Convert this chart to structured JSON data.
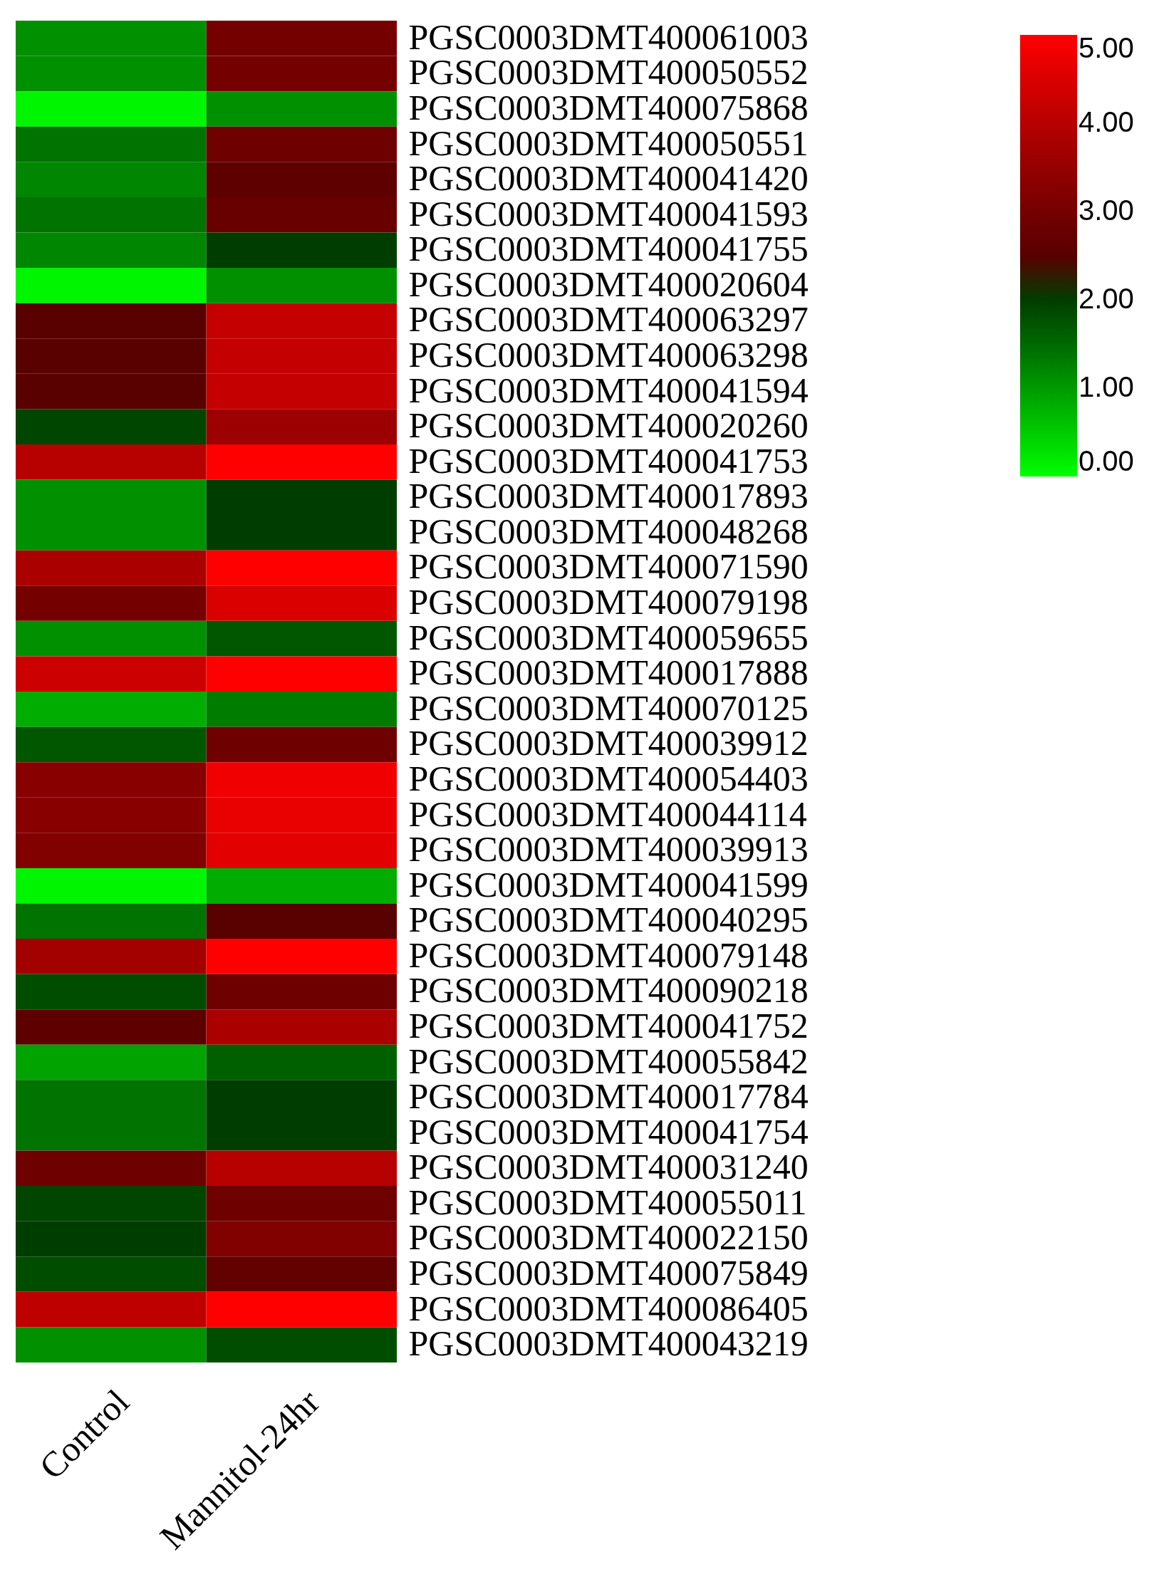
{
  "chart_data": {
    "type": "heatmap",
    "categories": [
      "Control",
      "Mannitol-24hr"
    ],
    "y_categories": [
      "PGSC0003DMT400061003",
      "PGSC0003DMT400050552",
      "PGSC0003DMT400075868",
      "PGSC0003DMT400050551",
      "PGSC0003DMT400041420",
      "PGSC0003DMT400041593",
      "PGSC0003DMT400041755",
      "PGSC0003DMT400020604",
      "PGSC0003DMT400063297",
      "PGSC0003DMT400063298",
      "PGSC0003DMT400041594",
      "PGSC0003DMT400020260",
      "PGSC0003DMT400041753",
      "PGSC0003DMT400017893",
      "PGSC0003DMT400048268",
      "PGSC0003DMT400071590",
      "PGSC0003DMT400079198",
      "PGSC0003DMT400059655",
      "PGSC0003DMT400017888",
      "PGSC0003DMT400070125",
      "PGSC0003DMT400039912",
      "PGSC0003DMT400054403",
      "PGSC0003DMT400044114",
      "PGSC0003DMT400039913",
      "PGSC0003DMT400041599",
      "PGSC0003DMT400040295",
      "PGSC0003DMT400079148",
      "PGSC0003DMT400090218",
      "PGSC0003DMT400041752",
      "PGSC0003DMT400055842",
      "PGSC0003DMT400017784",
      "PGSC0003DMT400041754",
      "PGSC0003DMT400031240",
      "PGSC0003DMT400055011",
      "PGSC0003DMT400022150",
      "PGSC0003DMT400075849",
      "PGSC0003DMT400086405",
      "PGSC0003DMT400043219"
    ],
    "cells": [
      [
        1.1,
        3.0
      ],
      [
        1.1,
        3.0
      ],
      [
        0.1,
        1.1
      ],
      [
        1.4,
        2.9
      ],
      [
        1.2,
        2.6
      ],
      [
        1.4,
        2.8
      ],
      [
        1.2,
        2.0
      ],
      [
        0.1,
        1.1
      ],
      [
        2.5,
        4.2
      ],
      [
        2.5,
        4.2
      ],
      [
        2.5,
        4.2
      ],
      [
        1.9,
        3.6
      ],
      [
        4.0,
        5.0
      ],
      [
        1.1,
        2.0
      ],
      [
        1.1,
        2.0
      ],
      [
        3.8,
        5.0
      ],
      [
        3.0,
        4.5
      ],
      [
        1.1,
        1.7
      ],
      [
        4.3,
        5.0
      ],
      [
        0.8,
        1.3
      ],
      [
        1.7,
        2.9
      ],
      [
        3.3,
        4.8
      ],
      [
        3.3,
        4.7
      ],
      [
        3.2,
        4.6
      ],
      [
        0.1,
        0.8
      ],
      [
        1.4,
        2.5
      ],
      [
        3.7,
        5.0
      ],
      [
        1.8,
        2.9
      ],
      [
        2.6,
        3.8
      ],
      [
        0.9,
        1.6
      ],
      [
        1.4,
        2.0
      ],
      [
        1.4,
        2.0
      ],
      [
        2.9,
        4.0
      ],
      [
        1.9,
        2.9
      ],
      [
        2.0,
        3.2
      ],
      [
        1.8,
        2.7
      ],
      [
        4.1,
        5.0
      ],
      [
        1.1,
        1.8
      ]
    ],
    "clim": [
      0,
      5
    ],
    "cticks": [
      {
        "value": 0,
        "label": "0.00"
      },
      {
        "value": 1,
        "label": "1.00"
      },
      {
        "value": 2,
        "label": "2.00"
      },
      {
        "value": 3,
        "label": "3.00"
      },
      {
        "value": 4,
        "label": "4.00"
      },
      {
        "value": 5,
        "label": "5.00"
      }
    ]
  }
}
